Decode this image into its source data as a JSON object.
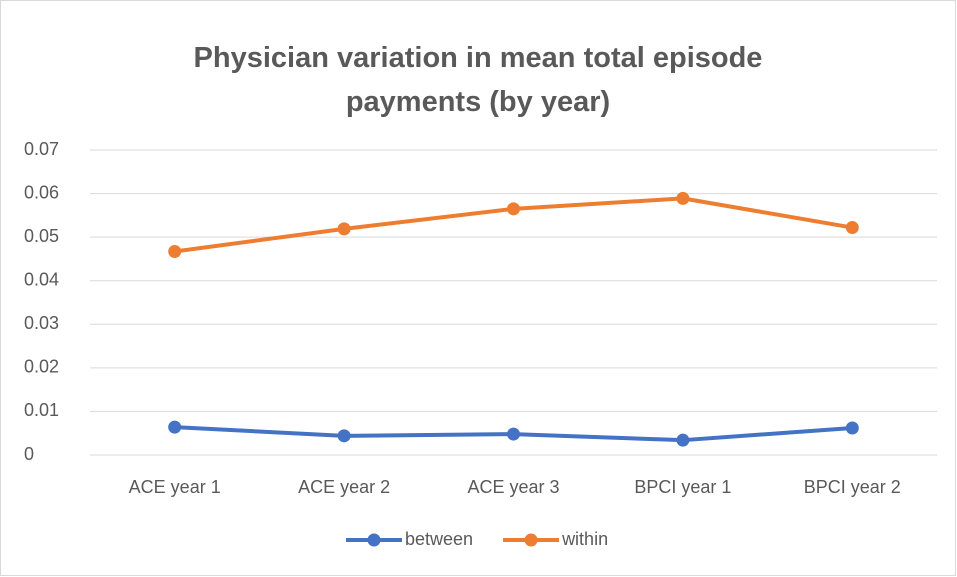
{
  "chart_data": {
    "type": "line",
    "title": "Physician variation in mean total episode payments (by year)",
    "categories": [
      "ACE year 1",
      "ACE year 2",
      "ACE year 3",
      "BPCI year 1",
      "BPCI year 2"
    ],
    "series": [
      {
        "name": "between",
        "color": "#4472c4",
        "values": [
          0.0064,
          0.0044,
          0.0048,
          0.0034,
          0.0062
        ]
      },
      {
        "name": "within",
        "color": "#ed7d31",
        "values": [
          0.0467,
          0.0519,
          0.0565,
          0.0589,
          0.0522
        ]
      }
    ],
    "ylim": [
      0,
      0.07
    ],
    "yticks": [
      0,
      0.01,
      0.02,
      0.03,
      0.04,
      0.05,
      0.06,
      0.07
    ],
    "grid": true,
    "legend": "bottom"
  }
}
